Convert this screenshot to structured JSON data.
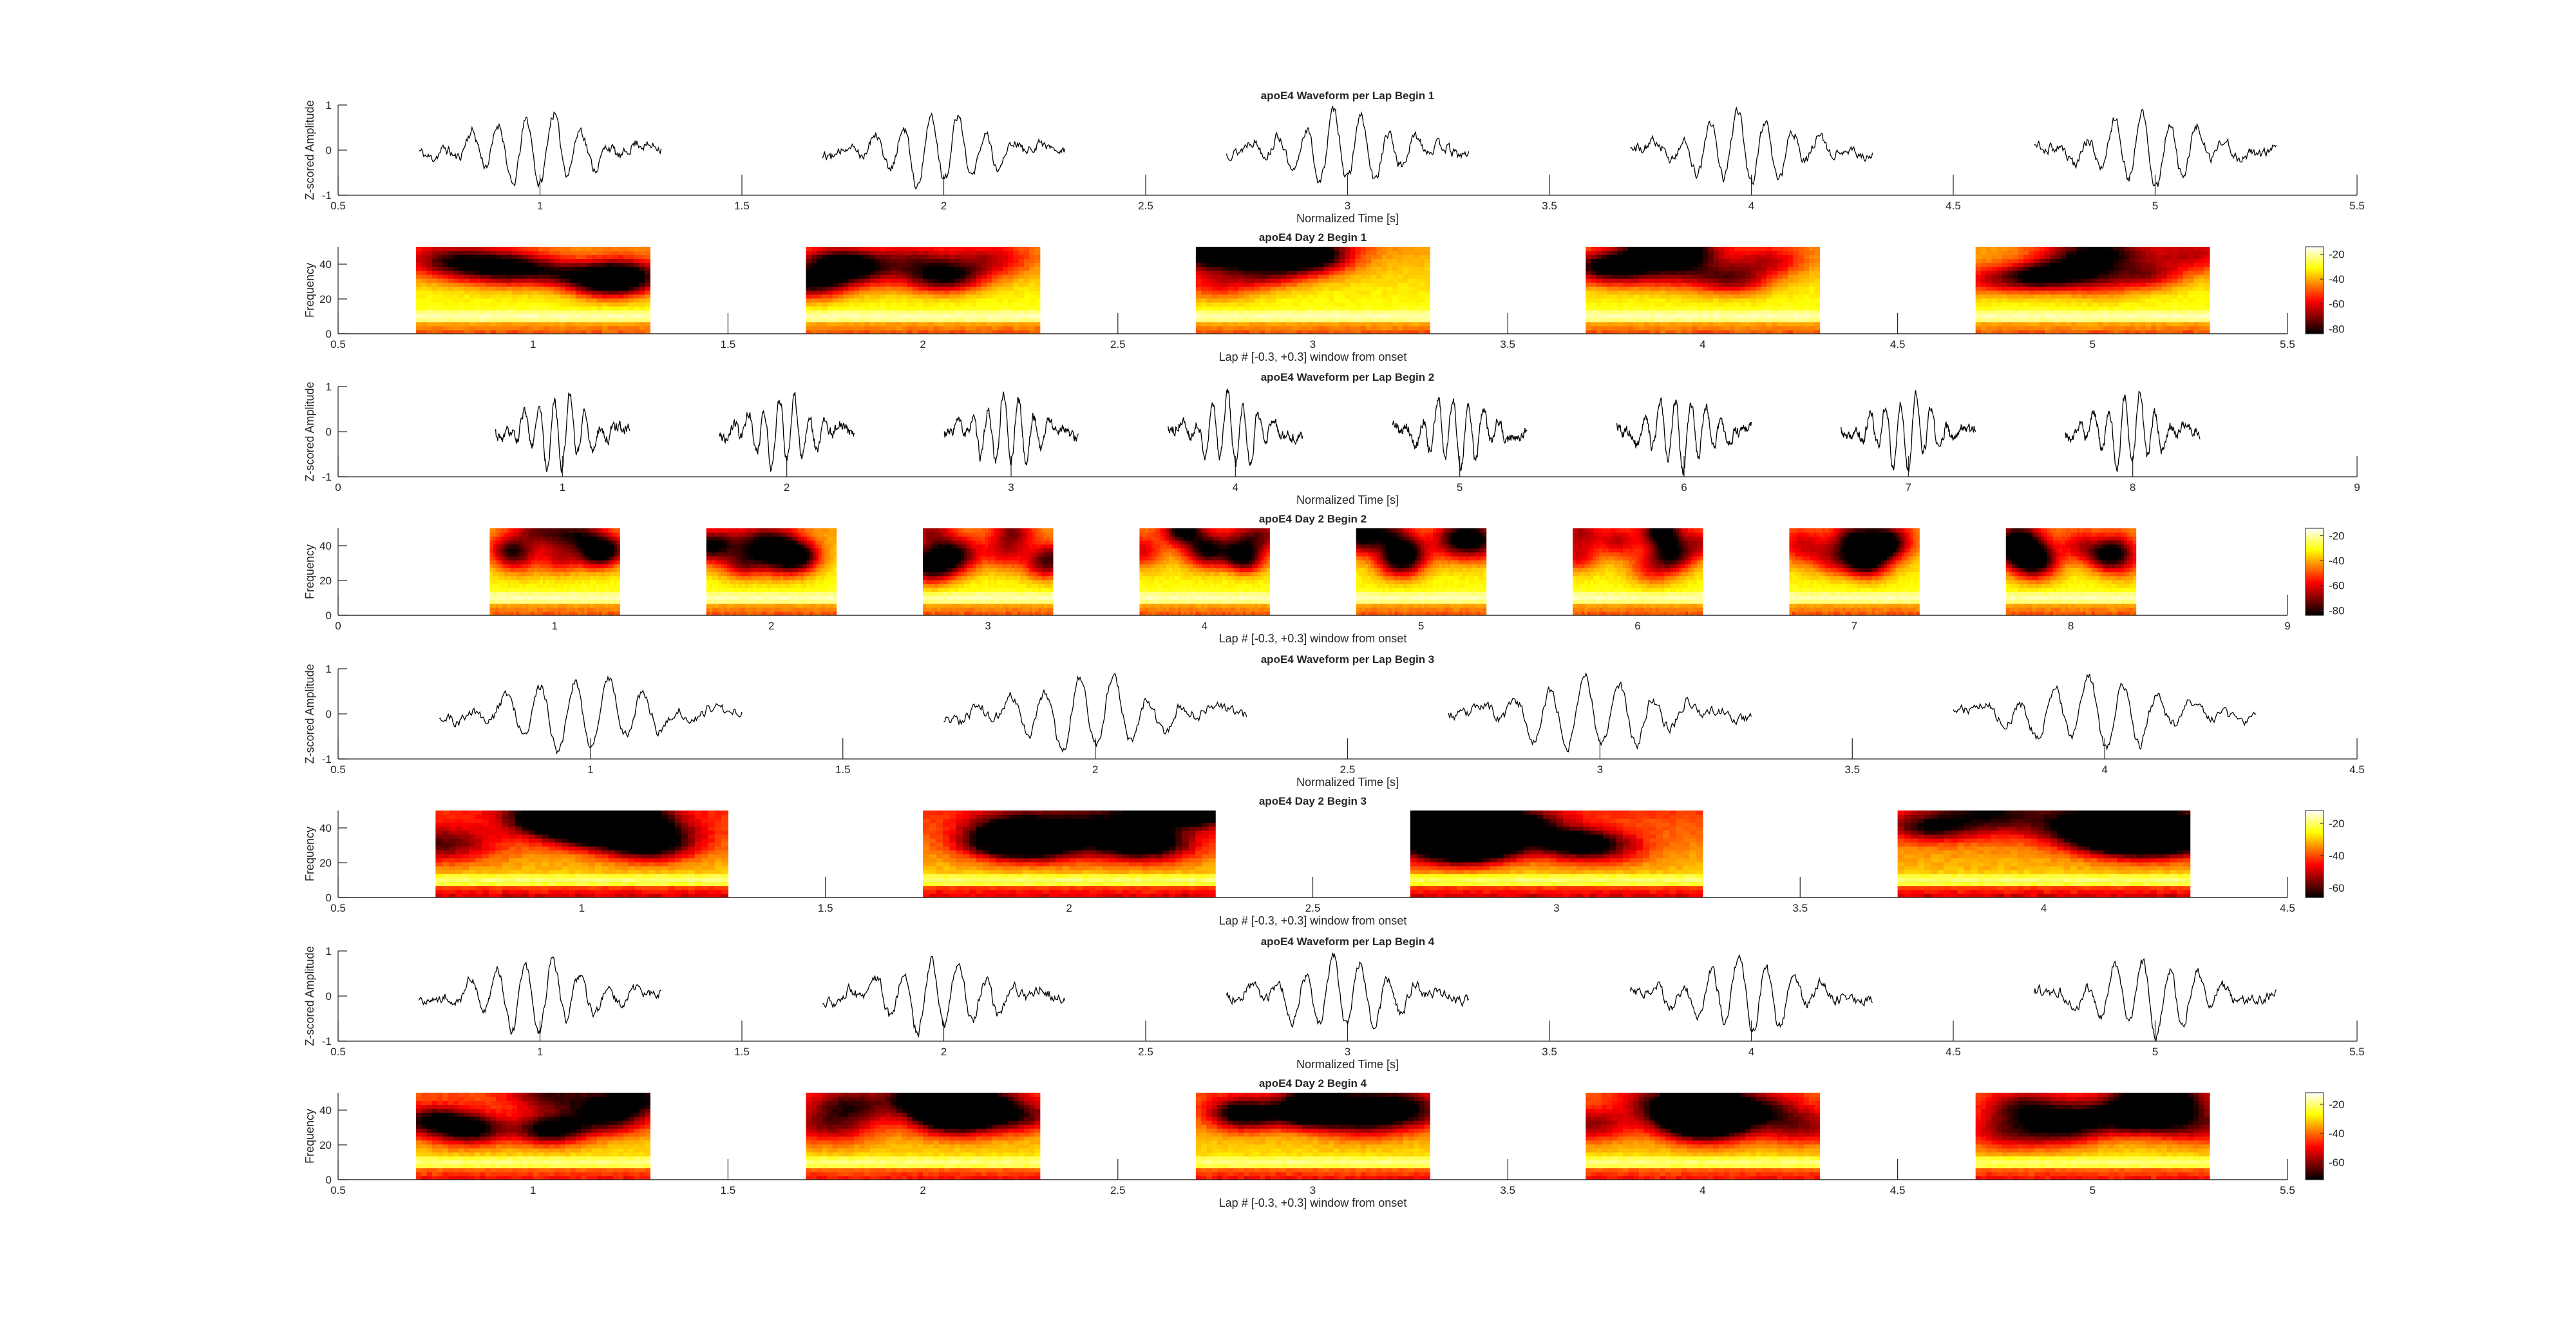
{
  "figure": {
    "background": "#ffffff",
    "axis_color": "#262626",
    "trace_color": "#000000"
  },
  "chart_data": [
    {
      "type": "line",
      "title": "apoE4 Waveform per Lap Begin 1",
      "xlabel": "Normalized Time [s]",
      "ylabel": "Z-scored Amplitude",
      "xlim": [
        0.5,
        5.5
      ],
      "ylim": [
        -1,
        1
      ],
      "xticks": [
        "0.5",
        "1",
        "1.5",
        "2",
        "2.5",
        "3",
        "3.5",
        "4",
        "4.5",
        "5",
        "5.5"
      ],
      "yticks": [
        "-1",
        "0",
        "1"
      ],
      "lap_centers": [
        1,
        2,
        3,
        4,
        5
      ],
      "window": 0.3,
      "lap_seeds": [
        11,
        12,
        13,
        14,
        15
      ]
    },
    {
      "type": "heatmap",
      "title": "apoE4 Day 2 Begin 1",
      "xlabel": "Lap # [-0.3, +0.3] window from onset",
      "ylabel": "Frequency",
      "xlim": [
        0.5,
        5.5
      ],
      "ylim": [
        0,
        50
      ],
      "xticks": [
        "0.5",
        "1",
        "1.5",
        "2",
        "2.5",
        "3",
        "3.5",
        "4",
        "4.5",
        "5",
        "5.5"
      ],
      "yticks": [
        "0",
        "20",
        "40"
      ],
      "lap_centers": [
        1,
        2,
        3,
        4,
        5
      ],
      "window": 0.3,
      "colorbar": {
        "ticks": [
          "-20",
          "-40",
          "-60",
          "-80"
        ],
        "values": [
          -20,
          -40,
          -60,
          -80
        ],
        "range": [
          -84,
          -14
        ]
      },
      "lap_seeds": [
        21,
        22,
        23,
        24,
        25
      ]
    },
    {
      "type": "line",
      "title": "apoE4 Waveform per Lap Begin 2",
      "xlabel": "Normalized Time [s]",
      "ylabel": "Z-scored Amplitude",
      "xlim": [
        0,
        9
      ],
      "ylim": [
        -1,
        1
      ],
      "xticks": [
        "0",
        "1",
        "2",
        "3",
        "4",
        "5",
        "6",
        "7",
        "8",
        "9"
      ],
      "yticks": [
        "-1",
        "0",
        "1"
      ],
      "lap_centers": [
        1,
        2,
        3,
        4,
        5,
        6,
        7,
        8
      ],
      "window": 0.3,
      "lap_seeds": [
        31,
        32,
        33,
        34,
        35,
        36,
        37,
        38
      ]
    },
    {
      "type": "heatmap",
      "title": "apoE4 Day 2 Begin 2",
      "xlabel": "Lap # [-0.3, +0.3] window from onset",
      "ylabel": "Frequency",
      "xlim": [
        0,
        9
      ],
      "ylim": [
        0,
        50
      ],
      "xticks": [
        "0",
        "1",
        "2",
        "3",
        "4",
        "5",
        "6",
        "7",
        "8",
        "9"
      ],
      "yticks": [
        "0",
        "20",
        "40"
      ],
      "lap_centers": [
        1,
        2,
        3,
        4,
        5,
        6,
        7,
        8
      ],
      "window": 0.3,
      "colorbar": {
        "ticks": [
          "-20",
          "-40",
          "-60",
          "-80"
        ],
        "values": [
          -20,
          -40,
          -60,
          -80
        ],
        "range": [
          -84,
          -14
        ]
      },
      "lap_seeds": [
        41,
        42,
        43,
        44,
        45,
        46,
        47,
        48
      ]
    },
    {
      "type": "line",
      "title": "apoE4 Waveform per Lap Begin 3",
      "xlabel": "Normalized Time [s]",
      "ylabel": "Z-scored Amplitude",
      "xlim": [
        0.5,
        4.5
      ],
      "ylim": [
        -1,
        1
      ],
      "xticks": [
        "0.5",
        "1",
        "1.5",
        "2",
        "2.5",
        "3",
        "3.5",
        "4",
        "4.5"
      ],
      "yticks": [
        "-1",
        "0",
        "1"
      ],
      "lap_centers": [
        1,
        2,
        3,
        4
      ],
      "window": 0.3,
      "lap_seeds": [
        51,
        52,
        53,
        54
      ]
    },
    {
      "type": "heatmap",
      "title": "apoE4 Day 2 Begin 3",
      "xlabel": "Lap # [-0.3, +0.3] window from onset",
      "ylabel": "Frequency",
      "xlim": [
        0.5,
        4.5
      ],
      "ylim": [
        0,
        50
      ],
      "xticks": [
        "0.5",
        "1",
        "1.5",
        "2",
        "2.5",
        "3",
        "3.5",
        "4",
        "4.5"
      ],
      "yticks": [
        "0",
        "20",
        "40"
      ],
      "lap_centers": [
        1,
        2,
        3,
        4
      ],
      "window": 0.3,
      "colorbar": {
        "ticks": [
          "-20",
          "-40",
          "-60"
        ],
        "values": [
          -20,
          -40,
          -60
        ],
        "range": [
          -66,
          -12
        ]
      },
      "lap_seeds": [
        61,
        62,
        63,
        64
      ]
    },
    {
      "type": "line",
      "title": "apoE4 Waveform per Lap Begin 4",
      "xlabel": "Normalized Time [s]",
      "ylabel": "Z-scored Amplitude",
      "xlim": [
        0.5,
        5.5
      ],
      "ylim": [
        -1,
        1
      ],
      "xticks": [
        "0.5",
        "1",
        "1.5",
        "2",
        "2.5",
        "3",
        "3.5",
        "4",
        "4.5",
        "5",
        "5.5"
      ],
      "yticks": [
        "-1",
        "0",
        "1"
      ],
      "lap_centers": [
        1,
        2,
        3,
        4,
        5
      ],
      "window": 0.3,
      "lap_seeds": [
        71,
        72,
        73,
        74,
        75
      ]
    },
    {
      "type": "heatmap",
      "title": "apoE4 Day 2 Begin 4",
      "xlabel": "Lap # [-0.3, +0.3] window from onset",
      "ylabel": "Frequency",
      "xlim": [
        0.5,
        5.5
      ],
      "ylim": [
        0,
        50
      ],
      "xticks": [
        "0.5",
        "1",
        "1.5",
        "2",
        "2.5",
        "3",
        "3.5",
        "4",
        "4.5",
        "5",
        "5.5"
      ],
      "yticks": [
        "0",
        "20",
        "40"
      ],
      "lap_centers": [
        1,
        2,
        3,
        4,
        5
      ],
      "window": 0.3,
      "colorbar": {
        "ticks": [
          "-20",
          "-40",
          "-60"
        ],
        "values": [
          -20,
          -40,
          -60
        ],
        "range": [
          -72,
          -12
        ]
      },
      "lap_seeds": [
        81,
        82,
        83,
        84,
        85
      ]
    }
  ]
}
